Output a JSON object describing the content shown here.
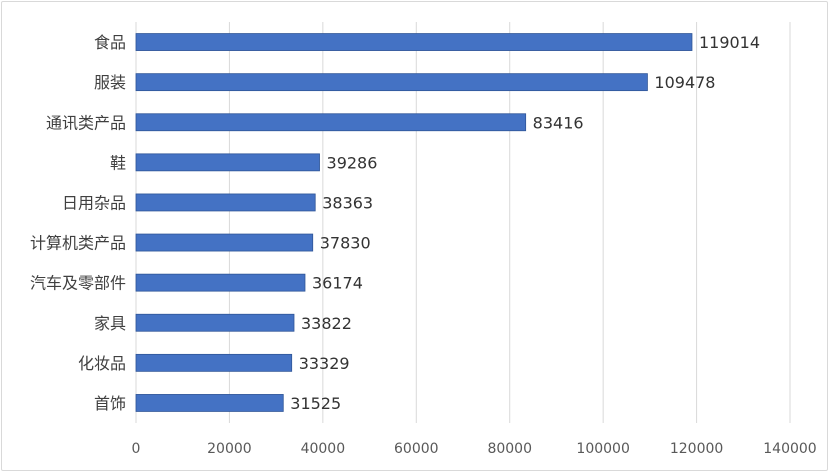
{
  "chart_data": {
    "type": "bar",
    "orientation": "horizontal",
    "categories": [
      "食品",
      "服装",
      "通讯类产品",
      "鞋",
      "日用杂品",
      "计算机类产品",
      "汽车及零部件",
      "家具",
      "化妆品",
      "首饰"
    ],
    "values": [
      119014,
      109478,
      83416,
      39286,
      38363,
      37830,
      36174,
      33822,
      33329,
      31525
    ],
    "data_labels": [
      "119014",
      "109478",
      "83416",
      "39286",
      "38363",
      "37830",
      "36174",
      "33822",
      "33329",
      "31525"
    ],
    "x_ticks": [
      "0",
      "20000",
      "40000",
      "60000",
      "80000",
      "100000",
      "120000",
      "140000"
    ],
    "xlim": [
      0,
      140000
    ],
    "grid": "vertical",
    "legend": "none",
    "bar_color": "#4472c4",
    "bar_edge_color": "#2f5597",
    "grid_color": "#d9d9d9"
  }
}
